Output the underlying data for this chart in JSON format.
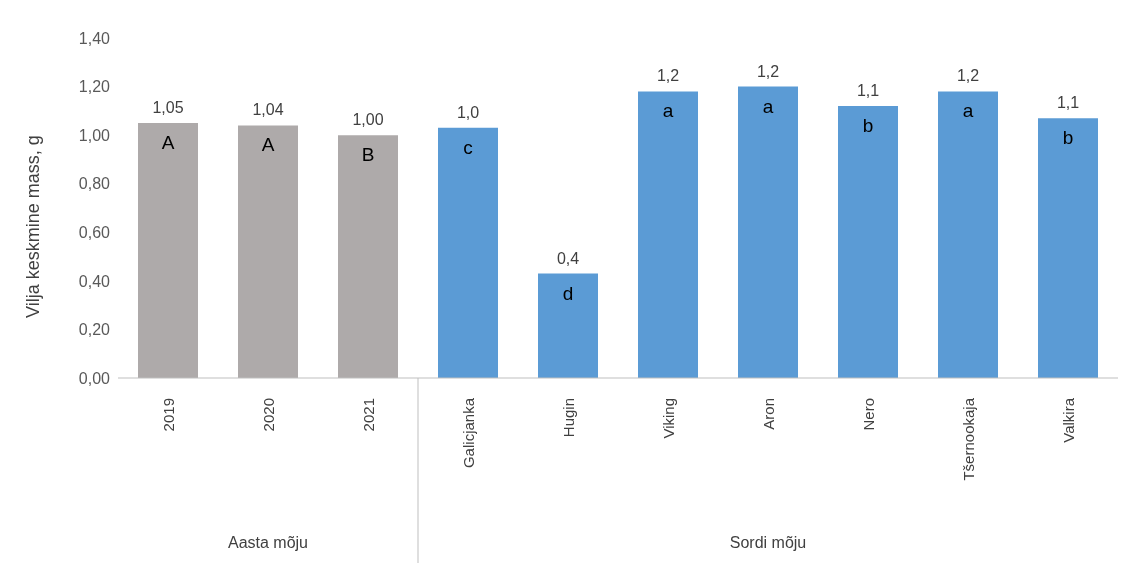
{
  "chart_data": {
    "type": "bar",
    "ylabel": "Vilja keskmine mass, g",
    "categories": [
      "2019",
      "2020",
      "2021",
      "Galicjanka",
      "Hugin",
      "Viking",
      "Aron",
      "Nero",
      "Tšernookaja",
      "Valkira"
    ],
    "values": [
      1.05,
      1.04,
      1.0,
      1.03,
      0.43,
      1.18,
      1.2,
      1.12,
      1.18,
      1.07
    ],
    "colors": [
      "#aeaaaa",
      "#aeaaaa",
      "#aeaaaa",
      "#5b9bd5",
      "#5b9bd5",
      "#5b9bd5",
      "#5b9bd5",
      "#5b9bd5",
      "#5b9bd5",
      "#5b9bd5"
    ],
    "value_labels": [
      "1,05",
      "1,04",
      "1,00",
      "1,0",
      "0,4",
      "1,2",
      "1,2",
      "1,1",
      "1,2",
      "1,1"
    ],
    "ylim": [
      0,
      1.4
    ],
    "yticks": [
      {
        "value": 0,
        "label": "0,00"
      },
      {
        "value": 0.2,
        "label": "0,20"
      },
      {
        "value": 0.4,
        "label": "0,40"
      },
      {
        "value": 0.6,
        "label": "0,60"
      },
      {
        "value": 0.8,
        "label": "0,80"
      },
      {
        "value": 1.0,
        "label": "1,00"
      },
      {
        "value": 1.2,
        "label": "1,20"
      },
      {
        "value": 1.4,
        "label": "1,40"
      }
    ],
    "annotations": [
      {
        "text": "A",
        "x": "2019",
        "y": 1.05
      },
      {
        "text": "A",
        "x": "2020",
        "y": 1.04
      },
      {
        "text": "B",
        "x": "2021",
        "y": 1.0
      },
      {
        "text": "c",
        "x": "Galicjanka",
        "y": 1.03
      },
      {
        "text": "d",
        "x": "Hugin",
        "y": 0.43
      },
      {
        "text": "a",
        "x": "Viking",
        "y": 1.18
      },
      {
        "text": "a",
        "x": "Aron",
        "y": 1.2
      },
      {
        "text": "b",
        "x": "Nero",
        "y": 1.12
      },
      {
        "text": "a",
        "x": "Tšernookaja",
        "y": 1.18
      },
      {
        "text": "b",
        "x": "Valkira",
        "y": 1.07
      },
      "Aasta mõju",
      "Sordi mõju"
    ],
    "grid": false,
    "legend": false
  }
}
